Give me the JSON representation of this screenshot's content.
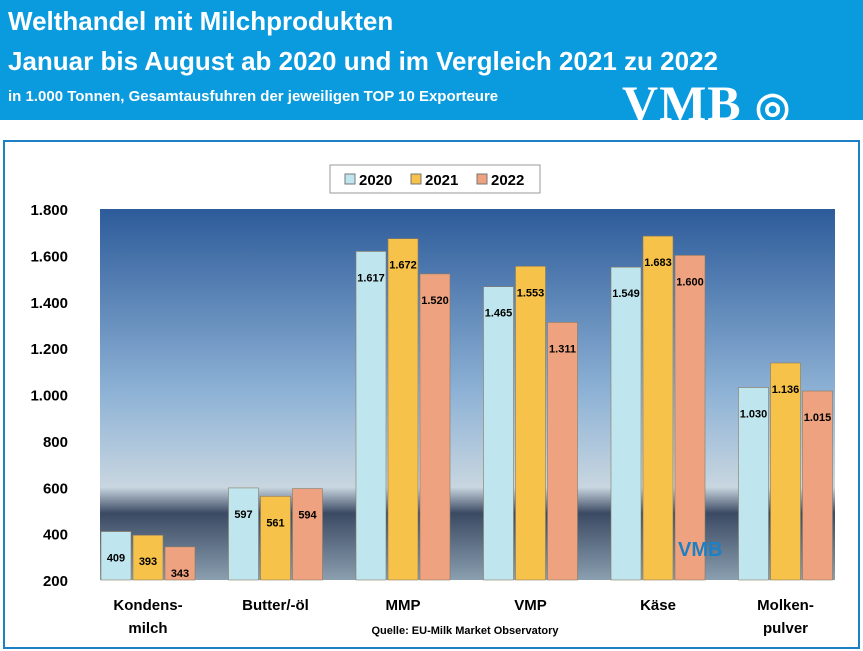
{
  "header": {
    "title1": "Welthandel mit Milchprodukten",
    "title2": "Januar bis August ab 2020 und im Vergleich 2021 zu 2022",
    "subtitle": "in 1.000 Tonnen, Gesamtausfuhren der jeweiligen TOP 10 Exporteure",
    "logo": "VMB"
  },
  "colors": {
    "header": "#0a9ade",
    "s2020": "#bfe6ef",
    "s2021": "#f6c24a",
    "s2022": "#eea27f"
  },
  "chart_data": {
    "type": "bar",
    "categories": [
      "Kondens-\nmilch",
      "Butter/-öl",
      "MMP",
      "VMP",
      "Käse",
      "Molken-\npulver"
    ],
    "series": [
      {
        "name": "2020",
        "values": [
          409,
          597,
          1617,
          1465,
          1549,
          1030
        ]
      },
      {
        "name": "2021",
        "values": [
          393,
          561,
          1672,
          1553,
          1683,
          1136
        ]
      },
      {
        "name": "2022",
        "values": [
          343,
          594,
          1520,
          1311,
          1600,
          1015
        ]
      }
    ],
    "value_labels": [
      [
        "409",
        "597",
        "1.617",
        "1.465",
        "1.549",
        "1.030"
      ],
      [
        "393",
        "561",
        "1.672",
        "1.553",
        "1.683",
        "1.136"
      ],
      [
        "343",
        "594",
        "1.520",
        "1.311",
        "1.600",
        "1.015"
      ]
    ],
    "yticks": [
      "200",
      "400",
      "600",
      "800",
      "1.000",
      "1.200",
      "1.400",
      "1.600",
      "1.800"
    ],
    "ylim": [
      200,
      1800
    ],
    "legend": "top-center",
    "source": "Quelle: EU-Milk Market Observatory",
    "watermark": "VMB"
  }
}
